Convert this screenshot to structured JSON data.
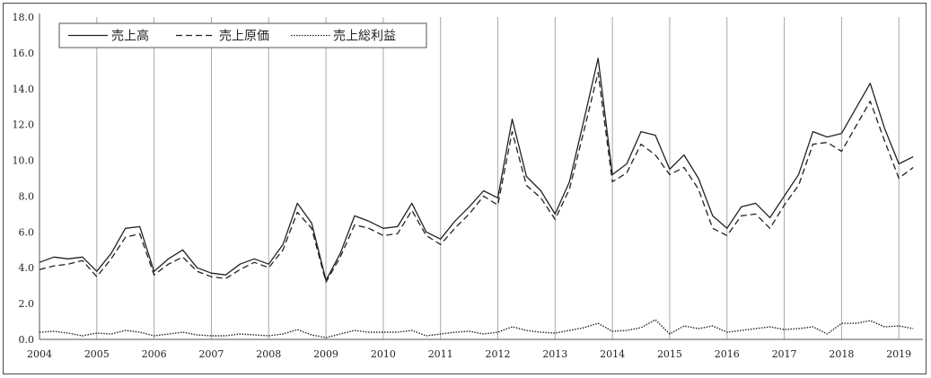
{
  "chart_data": {
    "type": "line",
    "title": "",
    "xlabel": "",
    "ylabel": "",
    "ylim": [
      0,
      18
    ],
    "y_ticks": [
      "0.0",
      "2.0",
      "4.0",
      "6.0",
      "8.0",
      "10.0",
      "12.0",
      "14.0",
      "16.0",
      "18.0"
    ],
    "x_range": [
      2004.0,
      2019.42
    ],
    "x_ticks": [
      "2004",
      "2005",
      "2006",
      "2007",
      "2008",
      "2009",
      "2010",
      "2011",
      "2012",
      "2013",
      "2014",
      "2015",
      "2016",
      "2017",
      "2018",
      "2019"
    ],
    "grid": "vertical",
    "legend_position": "top-left",
    "x": [
      2004.0,
      2004.25,
      2004.5,
      2004.75,
      2005.0,
      2005.25,
      2005.5,
      2005.75,
      2006.0,
      2006.25,
      2006.5,
      2006.75,
      2007.0,
      2007.25,
      2007.5,
      2007.75,
      2008.0,
      2008.25,
      2008.5,
      2008.75,
      2009.0,
      2009.25,
      2009.5,
      2009.75,
      2010.0,
      2010.25,
      2010.5,
      2010.75,
      2011.0,
      2011.25,
      2011.5,
      2011.75,
      2012.0,
      2012.25,
      2012.5,
      2012.75,
      2013.0,
      2013.25,
      2013.5,
      2013.75,
      2014.0,
      2014.25,
      2014.5,
      2014.75,
      2015.0,
      2015.25,
      2015.5,
      2015.75,
      2016.0,
      2016.25,
      2016.5,
      2016.75,
      2017.0,
      2017.25,
      2017.5,
      2017.75,
      2018.0,
      2018.25,
      2018.5,
      2018.75,
      2019.0,
      2019.25
    ],
    "series": [
      {
        "name": "売上高",
        "style": "solid",
        "color": "#222222",
        "values": [
          4.3,
          4.6,
          4.5,
          4.6,
          3.8,
          4.8,
          6.2,
          6.3,
          3.8,
          4.5,
          5.0,
          4.0,
          3.7,
          3.6,
          4.2,
          4.5,
          4.2,
          5.3,
          7.6,
          6.5,
          3.3,
          4.8,
          6.9,
          6.6,
          6.2,
          6.3,
          7.6,
          6.0,
          5.6,
          6.6,
          7.4,
          8.3,
          7.9,
          12.3,
          9.1,
          8.3,
          7.0,
          8.8,
          12.2,
          15.7,
          9.2,
          9.8,
          11.6,
          11.4,
          9.5,
          10.3,
          9.0,
          6.9,
          6.2,
          7.4,
          7.6,
          6.8,
          8.0,
          9.2,
          11.6,
          11.3,
          11.5,
          12.9,
          14.3,
          11.8,
          9.8,
          10.2
        ]
      },
      {
        "name": "売上原価",
        "style": "dashed",
        "color": "#222222",
        "values": [
          3.9,
          4.1,
          4.2,
          4.4,
          3.5,
          4.5,
          5.7,
          5.9,
          3.6,
          4.2,
          4.6,
          3.8,
          3.5,
          3.4,
          3.9,
          4.3,
          4.0,
          5.0,
          7.1,
          6.2,
          3.2,
          4.6,
          6.4,
          6.2,
          5.8,
          5.9,
          7.2,
          5.8,
          5.3,
          6.2,
          7.0,
          8.0,
          7.5,
          11.6,
          8.6,
          7.9,
          6.7,
          8.4,
          11.6,
          14.9,
          8.8,
          9.3,
          10.9,
          10.3,
          9.2,
          9.6,
          8.4,
          6.2,
          5.8,
          6.9,
          7.0,
          6.2,
          7.5,
          8.6,
          10.9,
          11.0,
          10.5,
          11.9,
          13.3,
          11.1,
          9.0,
          9.6
        ]
      },
      {
        "name": "売上総利益",
        "style": "dotted",
        "color": "#222222",
        "values": [
          0.4,
          0.45,
          0.35,
          0.2,
          0.35,
          0.3,
          0.5,
          0.4,
          0.2,
          0.3,
          0.4,
          0.25,
          0.2,
          0.2,
          0.3,
          0.25,
          0.2,
          0.3,
          0.55,
          0.25,
          0.1,
          0.3,
          0.5,
          0.4,
          0.4,
          0.4,
          0.5,
          0.2,
          0.3,
          0.4,
          0.45,
          0.3,
          0.4,
          0.7,
          0.5,
          0.4,
          0.35,
          0.5,
          0.65,
          0.9,
          0.45,
          0.5,
          0.65,
          1.1,
          0.3,
          0.75,
          0.6,
          0.75,
          0.4,
          0.5,
          0.6,
          0.7,
          0.55,
          0.6,
          0.7,
          0.3,
          0.9,
          0.9,
          1.05,
          0.7,
          0.75,
          0.6
        ]
      }
    ]
  }
}
